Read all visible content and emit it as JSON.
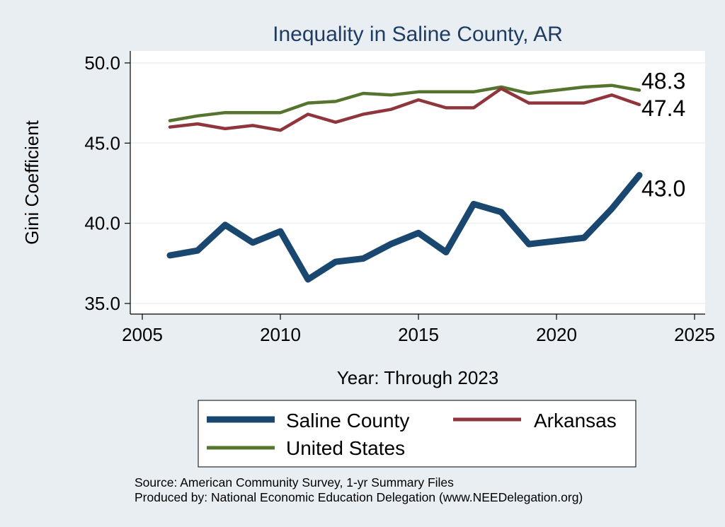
{
  "chart_data": {
    "type": "line",
    "title": "Inequality in Saline County, AR",
    "xlabel": "Year: Through 2023",
    "ylabel": "Gini Coefficient",
    "xlim": [
      2005,
      2025
    ],
    "ylim": [
      35,
      50
    ],
    "xticks": [
      2005,
      2010,
      2015,
      2020,
      2025
    ],
    "yticks": [
      35,
      40,
      45,
      50
    ],
    "ytick_labels": [
      "35.0",
      "40.0",
      "45.0",
      "50.0"
    ],
    "x": [
      2006,
      2007,
      2008,
      2009,
      2010,
      2011,
      2012,
      2013,
      2014,
      2015,
      2016,
      2017,
      2018,
      2019,
      2020,
      2021,
      2022,
      2023
    ],
    "series": [
      {
        "name": "Saline County",
        "color": "#1a476f",
        "values": [
          38.0,
          38.3,
          39.9,
          38.8,
          39.5,
          36.5,
          37.6,
          37.8,
          38.7,
          39.4,
          38.2,
          41.2,
          40.7,
          38.7,
          38.9,
          39.1,
          40.9,
          43.0
        ],
        "end_label": "43.0"
      },
      {
        "name": "Arkansas",
        "color": "#90353b",
        "values": [
          46.0,
          46.2,
          45.9,
          46.1,
          45.8,
          46.8,
          46.3,
          46.8,
          47.1,
          47.7,
          47.2,
          47.2,
          48.4,
          47.5,
          47.5,
          47.5,
          48.0,
          47.4
        ],
        "end_label": "47.4"
      },
      {
        "name": "United States",
        "color": "#55752f",
        "values": [
          46.4,
          46.7,
          46.9,
          46.9,
          46.9,
          47.5,
          47.6,
          48.1,
          48.0,
          48.2,
          48.2,
          48.2,
          48.5,
          48.1,
          48.3,
          48.5,
          48.6,
          48.3
        ],
        "end_label": "48.3"
      }
    ],
    "grid": true,
    "legend_position": "bottom"
  },
  "notes": {
    "source": "Source: American Community Survey, 1-yr Summary Files",
    "produced_by": "Produced by: National Economic Education Delegation (www.NEEDelegation.org)"
  }
}
